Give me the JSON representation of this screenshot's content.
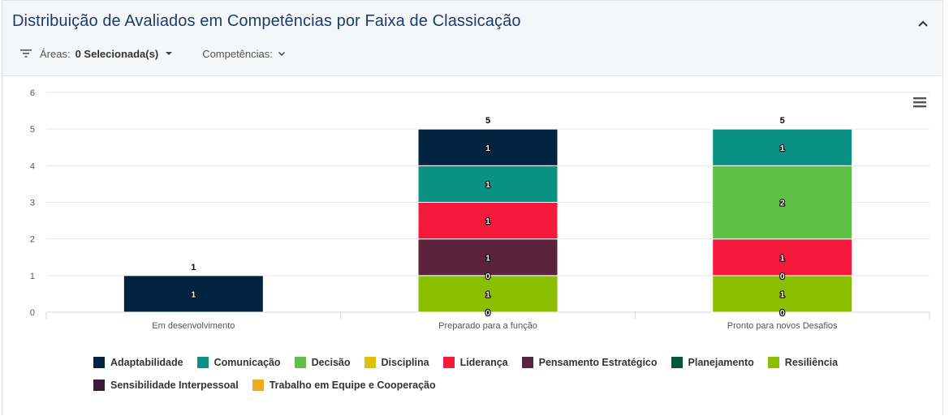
{
  "header": {
    "title": "Distribuição de Avaliados em Competências por Faixa de Classicação",
    "filters": {
      "areas_label": "Áreas:",
      "areas_value": "0 Selecionada(s)",
      "competencias_label": "Competências:"
    }
  },
  "icons": {
    "filter": "filter-icon",
    "collapse": "chevron-up-icon",
    "dropdown": "caret-down-icon",
    "chevron": "chevron-down-icon",
    "menu": "hamburger-menu-icon"
  },
  "chart_data": {
    "type": "bar",
    "stacked": true,
    "title": "",
    "xlabel": "",
    "ylabel": "",
    "ylim": [
      0,
      6
    ],
    "yticks": [
      0,
      1,
      2,
      3,
      4,
      5,
      6
    ],
    "grid": true,
    "legend_position": "bottom",
    "categories": [
      "Em desenvolvimento",
      "Preparado para a função",
      "Pronto para novos Desafios"
    ],
    "totals": [
      1,
      5,
      5
    ],
    "series": [
      {
        "name": "Adaptabilidade",
        "color": "#00233f",
        "values": [
          1,
          1,
          null
        ]
      },
      {
        "name": "Comunicação",
        "color": "#0a9184",
        "values": [
          null,
          1,
          1
        ]
      },
      {
        "name": "Decisão",
        "color": "#5ec045",
        "values": [
          null,
          null,
          2
        ]
      },
      {
        "name": "Disciplina",
        "color": "#dcc500",
        "values": [
          null,
          null,
          null
        ]
      },
      {
        "name": "Liderança",
        "color": "#f5193b",
        "values": [
          null,
          1,
          1
        ]
      },
      {
        "name": "Pensamento Estratégico",
        "color": "#5c233c",
        "values": [
          null,
          1,
          null
        ]
      },
      {
        "name": "Planejamento",
        "color": "#00573c",
        "values": [
          null,
          0,
          0
        ]
      },
      {
        "name": "Resiliência",
        "color": "#8abf00",
        "values": [
          null,
          1,
          1
        ]
      },
      {
        "name": "Sensibilidade Interpessoal",
        "color": "#3a1a35",
        "values": [
          null,
          0,
          0
        ]
      },
      {
        "name": "Trabalho em Equipe e Cooperação",
        "color": "#eaad21",
        "values": [
          null,
          0,
          0
        ]
      }
    ]
  }
}
